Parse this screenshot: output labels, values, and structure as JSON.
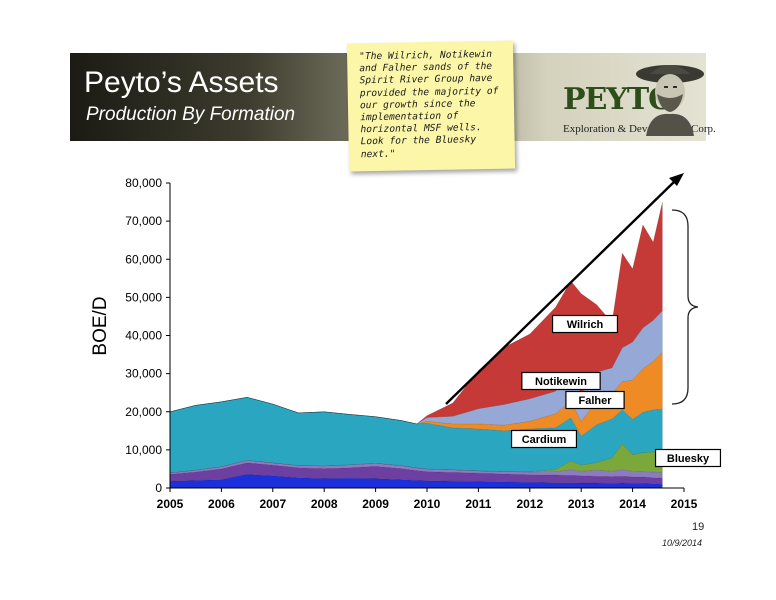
{
  "header": {
    "title": "Peyto’s Assets",
    "subtitle": "Production By Formation",
    "note": "\"The Wilrich, Notikewin and Falher sands of the Spirit River Group have provided the majority of our growth since the implementation of horizontal MSF wells. Look for the Bluesky next.\"",
    "logo_name": "PEYTO",
    "logo_sub": "Exploration & Development Corp."
  },
  "footer": {
    "page_number": "19",
    "date": "10/9/2014"
  },
  "colors": {
    "Bluesky": "#7aa83a",
    "Cardium": "#2ba6c0",
    "Falher": "#ef8b25",
    "Notikewin": "#95a8d6",
    "Wilrich": "#c53a36",
    "base_blue": "#1b2fdb",
    "base_purple": "#6c3fa0",
    "base_lilac": "#8c7bc0",
    "arrow": "#000000"
  },
  "chart_data": {
    "type": "area",
    "stacked": true,
    "ylabel": "BOE/D",
    "xlabel": "",
    "xlim": [
      2005,
      2015
    ],
    "ylim": [
      0,
      80000
    ],
    "x_ticks": [
      "2005",
      "2006",
      "2007",
      "2008",
      "2009",
      "2010",
      "2011",
      "2012",
      "2013",
      "2014",
      "2015"
    ],
    "y_ticks": [
      "0",
      "10,000",
      "20,000",
      "30,000",
      "40,000",
      "50,000",
      "60,000",
      "70,000",
      "80,000"
    ],
    "x": [
      2005.0,
      2005.5,
      2006.0,
      2006.5,
      2007.0,
      2007.5,
      2008.0,
      2008.5,
      2009.0,
      2009.5,
      2009.8,
      2010.0,
      2010.5,
      2011.0,
      2011.5,
      2012.0,
      2012.5,
      2012.8,
      2013.0,
      2013.3,
      2013.6,
      2013.8,
      2014.0,
      2014.2,
      2014.4,
      2014.58
    ],
    "series": [
      {
        "name": "",
        "values": [
          1800,
          2000,
          2200,
          3600,
          3200,
          2700,
          2500,
          2600,
          2500,
          2200,
          2000,
          1900,
          1800,
          1700,
          1600,
          1500,
          1400,
          1400,
          1300,
          1300,
          1200,
          1300,
          1200,
          1200,
          1100,
          1000
        ]
      },
      {
        "name": "",
        "values": [
          1800,
          2200,
          2800,
          3000,
          2800,
          2600,
          2600,
          2700,
          3200,
          2900,
          2600,
          2400,
          2300,
          2200,
          2100,
          2000,
          2000,
          1900,
          1900,
          1800,
          1800,
          1800,
          1700,
          1700,
          1600,
          1600
        ]
      },
      {
        "name": "",
        "values": [
          400,
          500,
          600,
          700,
          600,
          600,
          700,
          800,
          800,
          800,
          700,
          700,
          700,
          600,
          600,
          700,
          900,
          1500,
          1200,
          1600,
          1400,
          1700,
          1500,
          1400,
          1500,
          1400
        ]
      },
      {
        "name": "Bluesky",
        "values": [
          0,
          0,
          0,
          0,
          0,
          0,
          0,
          0,
          0,
          0,
          0,
          0,
          0,
          0,
          0,
          100,
          500,
          2300,
          1600,
          2000,
          3500,
          6800,
          4300,
          5000,
          5200,
          5800
        ]
      },
      {
        "name": "Cardium",
        "values": [
          16000,
          17000,
          17000,
          16500,
          15400,
          13800,
          14200,
          13200,
          12200,
          11800,
          11500,
          12000,
          11000,
          11000,
          10700,
          11200,
          11000,
          11300,
          7600,
          9900,
          10200,
          8900,
          9300,
          10600,
          11100,
          10900
        ]
      },
      {
        "name": "Falher",
        "values": [
          0,
          0,
          0,
          0,
          0,
          0,
          0,
          0,
          0,
          0,
          0,
          500,
          1000,
          1300,
          1500,
          2000,
          3700,
          4300,
          3900,
          6100,
          6600,
          7400,
          10300,
          11400,
          12700,
          14900
        ]
      },
      {
        "name": "Notikewin",
        "values": [
          0,
          0,
          0,
          0,
          0,
          0,
          0,
          0,
          0,
          0,
          0,
          1000,
          2000,
          4000,
          5400,
          5900,
          5900,
          7300,
          7300,
          7700,
          6800,
          8900,
          10000,
          10700,
          10800,
          10900
        ]
      },
      {
        "name": "Wilrich",
        "values": [
          0,
          0,
          0,
          0,
          0,
          0,
          0,
          0,
          0,
          0,
          0,
          500,
          3500,
          10000,
          15000,
          17000,
          22000,
          24300,
          26200,
          17700,
          11900,
          24800,
          19200,
          27000,
          20500,
          28500
        ]
      }
    ],
    "annotations": [
      "Wilrich",
      "Notikewin",
      "Falher",
      "Cardium",
      "Bluesky"
    ]
  }
}
